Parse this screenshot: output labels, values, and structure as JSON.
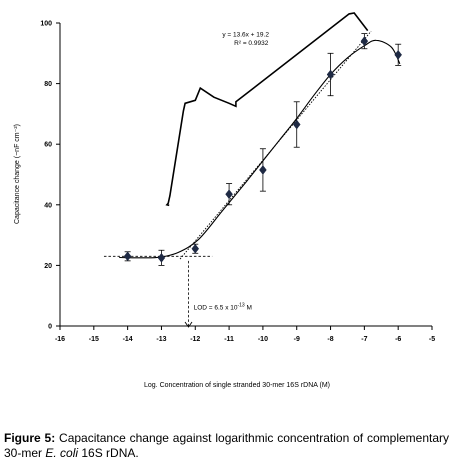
{
  "chart_data": {
    "type": "scatter",
    "x": [
      -14,
      -13,
      -12,
      -11,
      -10,
      -9,
      -8,
      -7,
      -6
    ],
    "y": [
      23,
      22.5,
      25.5,
      43.5,
      51.5,
      66.5,
      83,
      94,
      89.5
    ],
    "yerr": [
      1.5,
      2.5,
      1.5,
      3.5,
      7,
      7.5,
      7,
      2.5,
      3.5
    ],
    "xlabel": "Log. Concentration of single stranded 30-mer 16S rDNA (M)",
    "ylabel": "Capacitance change (−nF cm⁻²)",
    "xlim": [
      -16,
      -5
    ],
    "ylim": [
      0,
      100
    ],
    "xticks": [
      -16,
      -15,
      -14,
      -13,
      -12,
      -11,
      -10,
      -9,
      -8,
      -7,
      -6,
      -5
    ],
    "yticks": [
      0,
      20,
      40,
      60,
      80,
      100
    ],
    "grid": false,
    "fit": {
      "slope": 13.6,
      "intercept": 19.2,
      "equation": "y = 13.6x + 19.2",
      "r2": "R² = 0.9932"
    },
    "baseline_y": 23,
    "lod": {
      "x": -12.2,
      "label": "LOD = 6.5 x 10",
      "exp": "-13",
      "unit": " M"
    }
  },
  "caption": {
    "label": "Figure 5:",
    "text1": " Capacitance change against logarithmic concentration of complementary 30-mer ",
    "italic": "E. coli",
    "text2": " 16S rDNA."
  }
}
